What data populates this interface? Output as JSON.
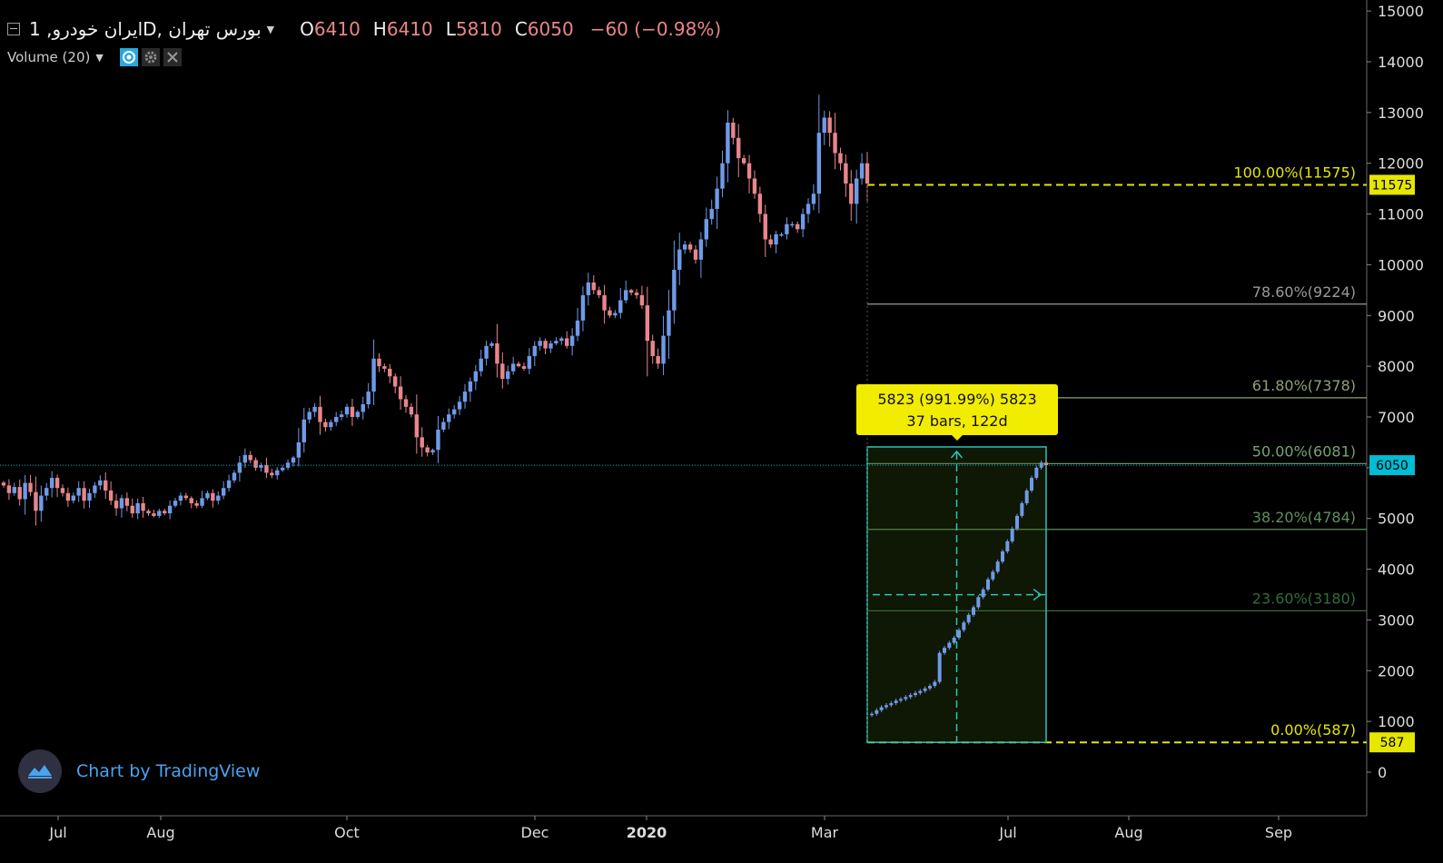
{
  "legend": {
    "symbol_title": "ایران خودرو, 1D, بورس تهران",
    "open_label": "O",
    "open_value": "6410",
    "high_label": "H",
    "high_value": "6410",
    "low_label": "L",
    "low_value": "5810",
    "close_label": "C",
    "close_value": "6050",
    "change": "−60 (−0.98%)",
    "volume_label": "Volume (20)"
  },
  "icons": {
    "eye": "eye-icon",
    "settings": "gear-icon",
    "close": "close-icon",
    "collapse": "collapse-icon",
    "brand": "tradingview-logo-icon"
  },
  "branding": {
    "text": "Chart by TradingView"
  },
  "colors": {
    "background": "#000000",
    "up": "#6f9ae8",
    "down": "#e8868b",
    "fib_extreme": "#e6e600",
    "fib_786": "#9a9a9a",
    "fib_618": "#8da07a",
    "fib_500": "#7aa07a",
    "fib_382": "#5f8f5f",
    "fib_236": "#2e6e3e",
    "range_box": "#2ec4b6",
    "price_line": "#00bcd4",
    "axis_text": "#dddddd"
  },
  "measure_tooltip": {
    "line1": "5823 (991.99%) 5823",
    "line2": "37 bars, 122d"
  },
  "chart_data": {
    "type": "candlestick",
    "title": "",
    "y_axis": {
      "ticks": [
        0,
        1000,
        2000,
        3000,
        4000,
        5000,
        6000,
        7000,
        8000,
        9000,
        10000,
        11000,
        12000,
        13000,
        14000,
        15000
      ],
      "ylim": [
        -800,
        15100
      ]
    },
    "x_axis": {
      "labels": [
        "Jul",
        "Aug",
        "Oct",
        "Dec",
        "2020",
        "Mar",
        "Jul",
        "Aug",
        "Sep"
      ],
      "bold": [
        "2020"
      ]
    },
    "current_price": {
      "value": 6050,
      "label": "6050"
    },
    "fib_levels": [
      {
        "ratio_label": "100.00%(11575)",
        "price": 11575,
        "axis_label": "11575"
      },
      {
        "ratio_label": "78.60%(9224)",
        "price": 9224
      },
      {
        "ratio_label": "61.80%(7378)",
        "price": 7378
      },
      {
        "ratio_label": "50.00%(6081)",
        "price": 6081
      },
      {
        "ratio_label": "38.20%(4784)",
        "price": 4784
      },
      {
        "ratio_label": "23.60%(3180)",
        "price": 3180
      },
      {
        "ratio_label": "0.00%(587)",
        "price": 587,
        "axis_label": "587"
      }
    ],
    "main_series": [
      5650,
      5500,
      5620,
      5380,
      5700,
      5520,
      5150,
      5450,
      5600,
      5800,
      5600,
      5500,
      5350,
      5450,
      5600,
      5350,
      5500,
      5650,
      5750,
      5550,
      5350,
      5200,
      5400,
      5250,
      5100,
      5300,
      5150,
      5100,
      5050,
      5150,
      5100,
      5250,
      5350,
      5450,
      5400,
      5300,
      5250,
      5400,
      5500,
      5350,
      5450,
      5600,
      5750,
      5900,
      6100,
      6250,
      6150,
      6000,
      6050,
      5900,
      5850,
      5950,
      6000,
      6100,
      6200,
      6500,
      6950,
      7100,
      7200,
      6900,
      6800,
      6900,
      7000,
      7050,
      7200,
      7000,
      7100,
      7250,
      7500,
      8150,
      8000,
      7950,
      7800,
      7600,
      7350,
      7200,
      7050,
      6600,
      6400,
      6300,
      6350,
      6750,
      6900,
      7050,
      7150,
      7300,
      7500,
      7700,
      7900,
      8150,
      8400,
      8450,
      8050,
      7750,
      7900,
      8050,
      8000,
      7950,
      8200,
      8400,
      8500,
      8350,
      8450,
      8500,
      8550,
      8400,
      8600,
      8900,
      9400,
      9650,
      9500,
      9400,
      9100,
      9000,
      9050,
      9300,
      9500,
      9450,
      9400,
      9200,
      8500,
      8200,
      8050,
      8600,
      9100,
      9900,
      10300,
      10400,
      10300,
      10100,
      10500,
      10900,
      11100,
      11500,
      12000,
      12800,
      12500,
      12100,
      12000,
      11700,
      11400,
      11000,
      10500,
      10400,
      10600,
      10600,
      10800,
      10800,
      10700,
      11000,
      11200,
      11400,
      12600,
      12900,
      12600,
      12200,
      12000,
      11600,
      11200,
      11700,
      12000,
      11600
    ],
    "measure_series": [
      1150,
      1220,
      1280,
      1320,
      1360,
      1410,
      1440,
      1480,
      1520,
      1560,
      1600,
      1650,
      1700,
      1780,
      2350,
      2450,
      2550,
      2650,
      2800,
      2950,
      3100,
      3250,
      3450,
      3600,
      3800,
      3950,
      4150,
      4350,
      4550,
      4800,
      5050,
      5300,
      5550,
      5800,
      6000,
      6100,
      6050
    ],
    "measure_box": {
      "from_price": 587,
      "to_price": 6410,
      "change_label": "5823 (991.99%) 5823",
      "span_label": "37 bars, 122d"
    }
  }
}
